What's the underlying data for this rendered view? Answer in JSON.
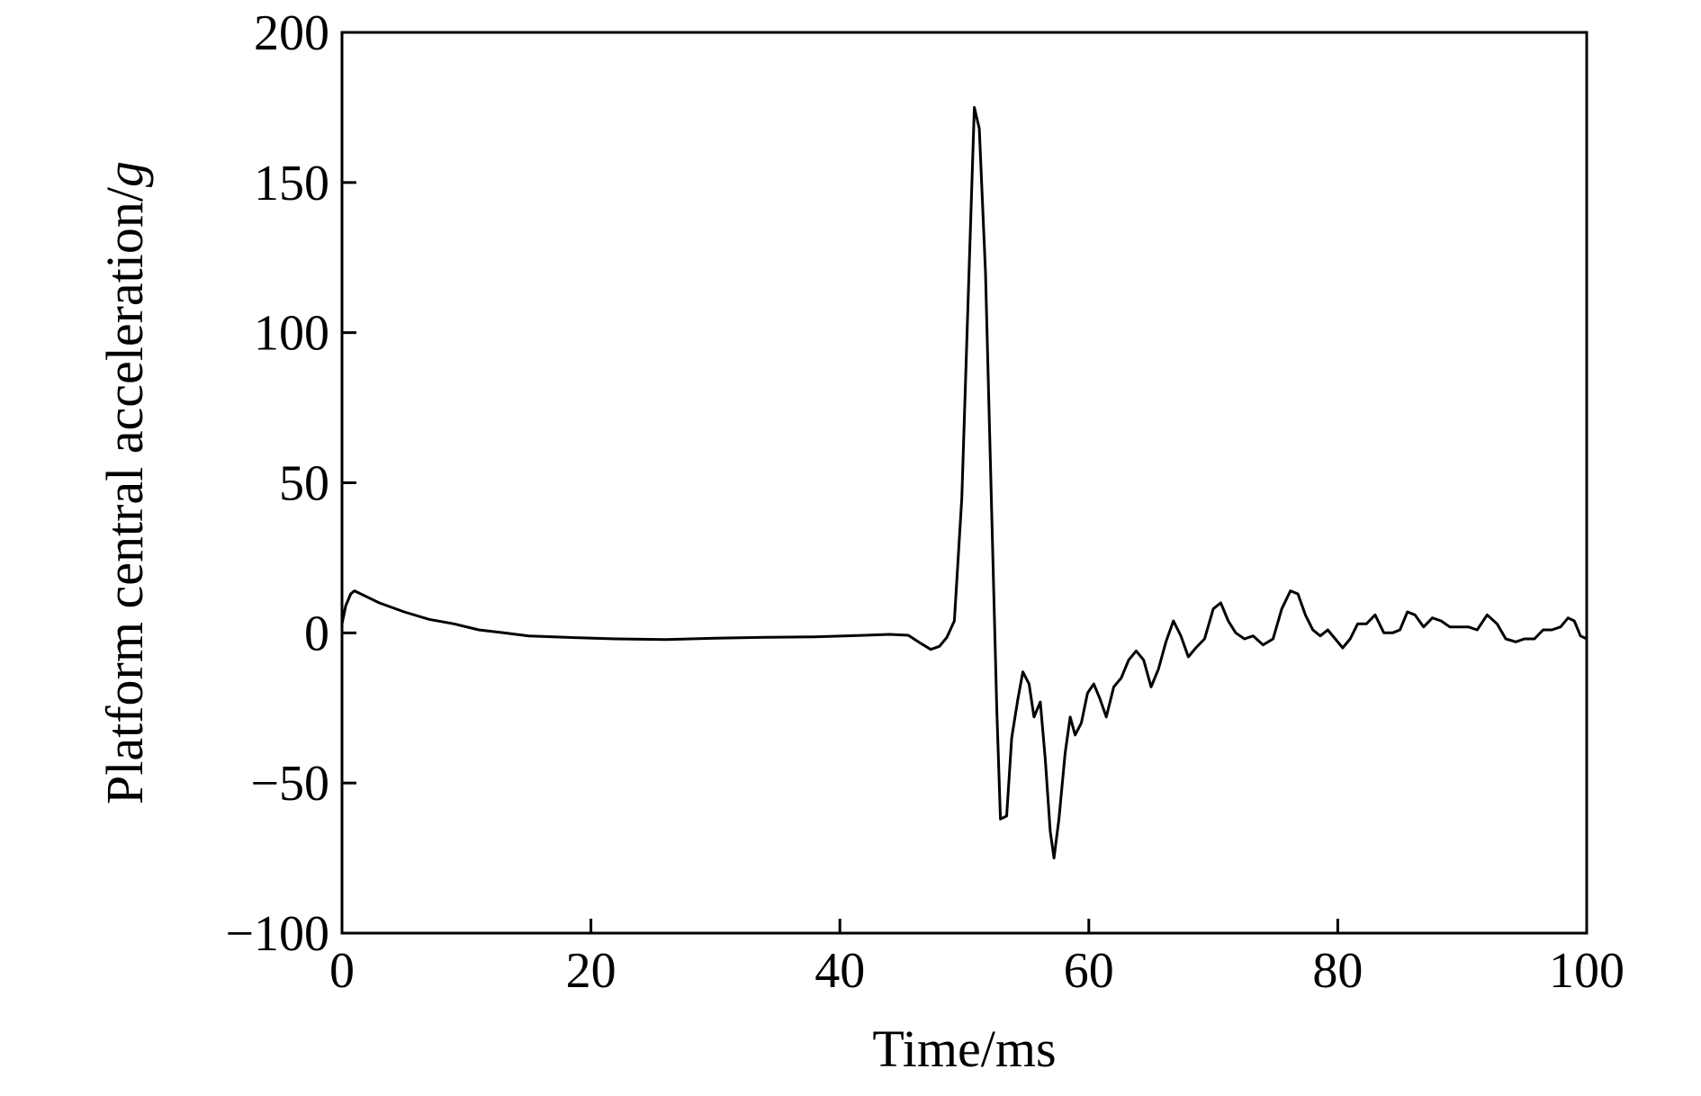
{
  "chart_data": {
    "type": "line",
    "title": "",
    "xlabel": "Time/ms",
    "ylabel_prefix": "Platform central acceleration/",
    "ylabel_unit": "g",
    "xlim": [
      0,
      100
    ],
    "ylim": [
      -100,
      200
    ],
    "x_ticks": [
      0,
      20,
      40,
      60,
      80,
      100
    ],
    "y_ticks": [
      -100,
      -50,
      0,
      50,
      100,
      150,
      200
    ],
    "x_tick_labels": [
      "0",
      "20",
      "40",
      "60",
      "80",
      "100"
    ],
    "y_tick_labels": [
      "−100",
      "−50",
      "0",
      "50",
      "100",
      "150",
      "200"
    ],
    "grid": false,
    "line_color": "#000000",
    "series": [
      {
        "points": [
          [
            0,
            3
          ],
          [
            0.3,
            9
          ],
          [
            0.7,
            13
          ],
          [
            1.0,
            14
          ],
          [
            2,
            12
          ],
          [
            3,
            10
          ],
          [
            5,
            7
          ],
          [
            7,
            4.5
          ],
          [
            9,
            3
          ],
          [
            11,
            1
          ],
          [
            13,
            0
          ],
          [
            15,
            -1
          ],
          [
            18,
            -1.5
          ],
          [
            22,
            -2
          ],
          [
            26,
            -2.2
          ],
          [
            30,
            -1.8
          ],
          [
            34,
            -1.5
          ],
          [
            38,
            -1.3
          ],
          [
            42,
            -0.8
          ],
          [
            44,
            -0.5
          ],
          [
            45.5,
            -0.8
          ],
          [
            46.5,
            -3.5
          ],
          [
            47.3,
            -5.5
          ],
          [
            48,
            -4.5
          ],
          [
            48.6,
            -1.5
          ],
          [
            49.2,
            4
          ],
          [
            49.8,
            45
          ],
          [
            50.3,
            110
          ],
          [
            50.8,
            175
          ],
          [
            51.2,
            168
          ],
          [
            51.7,
            120
          ],
          [
            52.2,
            40
          ],
          [
            52.6,
            -25
          ],
          [
            52.9,
            -62
          ],
          [
            53.4,
            -61
          ],
          [
            53.8,
            -35
          ],
          [
            54.3,
            -22
          ],
          [
            54.7,
            -13
          ],
          [
            55.2,
            -17
          ],
          [
            55.6,
            -28
          ],
          [
            56.1,
            -23
          ],
          [
            56.5,
            -42
          ],
          [
            56.9,
            -66
          ],
          [
            57.2,
            -75
          ],
          [
            57.6,
            -62
          ],
          [
            58.1,
            -40
          ],
          [
            58.5,
            -28
          ],
          [
            58.9,
            -34
          ],
          [
            59.4,
            -30
          ],
          [
            59.9,
            -20
          ],
          [
            60.4,
            -17
          ],
          [
            60.9,
            -22
          ],
          [
            61.4,
            -28
          ],
          [
            62.0,
            -18
          ],
          [
            62.6,
            -15
          ],
          [
            63.2,
            -9
          ],
          [
            63.8,
            -6
          ],
          [
            64.4,
            -9
          ],
          [
            65.0,
            -18
          ],
          [
            65.6,
            -12
          ],
          [
            66.2,
            -3
          ],
          [
            66.8,
            4
          ],
          [
            67.4,
            -1
          ],
          [
            68.0,
            -8
          ],
          [
            68.6,
            -5
          ],
          [
            69.3,
            -2
          ],
          [
            70.0,
            8
          ],
          [
            70.6,
            10
          ],
          [
            71.2,
            4
          ],
          [
            71.8,
            0
          ],
          [
            72.5,
            -2
          ],
          [
            73.2,
            -1
          ],
          [
            74.0,
            -4
          ],
          [
            74.8,
            -2
          ],
          [
            75.5,
            8
          ],
          [
            76.2,
            14
          ],
          [
            76.8,
            13
          ],
          [
            77.4,
            6
          ],
          [
            78.0,
            1
          ],
          [
            78.6,
            -1
          ],
          [
            79.2,
            1
          ],
          [
            79.8,
            -2
          ],
          [
            80.4,
            -5
          ],
          [
            81.0,
            -2
          ],
          [
            81.6,
            3
          ],
          [
            82.3,
            3
          ],
          [
            83.0,
            6
          ],
          [
            83.7,
            0
          ],
          [
            84.4,
            0
          ],
          [
            85.0,
            1
          ],
          [
            85.6,
            7
          ],
          [
            86.2,
            6
          ],
          [
            86.9,
            2
          ],
          [
            87.6,
            5
          ],
          [
            88.3,
            4
          ],
          [
            89.0,
            2
          ],
          [
            89.7,
            2
          ],
          [
            90.5,
            2
          ],
          [
            91.2,
            1
          ],
          [
            92.0,
            6
          ],
          [
            92.8,
            3
          ],
          [
            93.5,
            -2
          ],
          [
            94.3,
            -3
          ],
          [
            95.0,
            -2
          ],
          [
            95.8,
            -2
          ],
          [
            96.5,
            1
          ],
          [
            97.2,
            1
          ],
          [
            97.9,
            2
          ],
          [
            98.5,
            5
          ],
          [
            99.0,
            4
          ],
          [
            99.5,
            -1
          ],
          [
            100,
            -2
          ]
        ]
      }
    ]
  }
}
